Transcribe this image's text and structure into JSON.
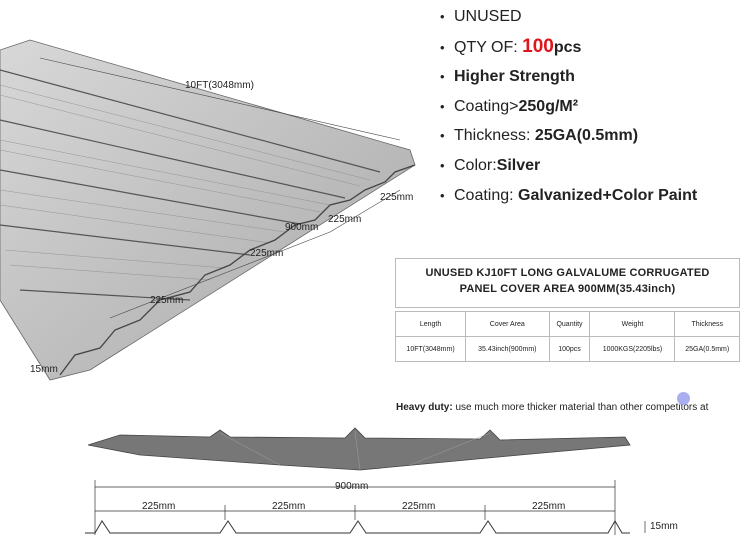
{
  "specs": {
    "unused": "UNUSED",
    "qty_label": "QTY OF:",
    "qty_value": "100",
    "qty_unit": "pcs",
    "strength": "Higher Strength",
    "coating_label": "Coating>",
    "coating_value": "250g/M²",
    "thickness_label": "Thickness:",
    "thickness_value": "25GA(0.5mm)",
    "color_label": "Color:",
    "color_value": "Silver",
    "coating2_label": "Coating:",
    "coating2_value": "Galvanized+Color Paint"
  },
  "panel_dims": {
    "length": "10FT(3048mm)",
    "cover": "900mm",
    "pitch": "225mm",
    "height": "15mm"
  },
  "table": {
    "title_line1": "UNUSED KJ10FT LONG GALVALUME CORRUGATED",
    "title_line2": "PANEL COVER AREA 900MM(35.43inch)",
    "headers": [
      "Length",
      "Cover Area",
      "Quantity",
      "Weight",
      "Thickness"
    ],
    "row": [
      "10FT(3048mm)",
      "35.43inch(900mm)",
      "100pcs",
      "1000KGS(2205lbs)",
      "25GA(0.5mm)"
    ]
  },
  "heavy_duty": {
    "label": "Heavy duty:",
    "text": "use much more thicker material than other competitors at"
  },
  "profile_dims": {
    "total": "900mm",
    "pitches": [
      "225mm",
      "225mm",
      "225mm",
      "225mm"
    ],
    "height": "15mm"
  }
}
